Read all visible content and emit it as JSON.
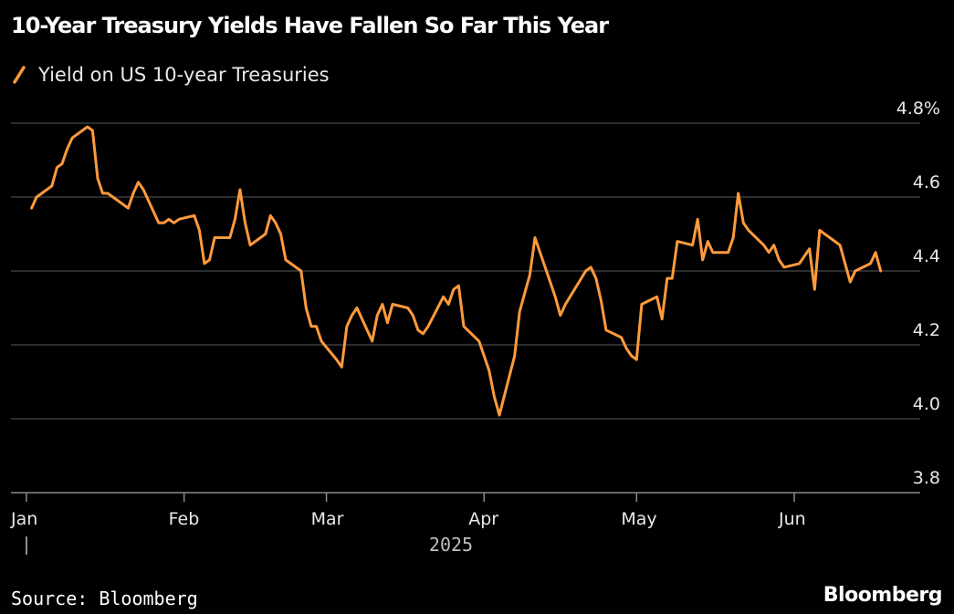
{
  "chart_data": {
    "type": "line",
    "title": "10-Year Treasury Yields Have Fallen So Far This Year",
    "year_label": "2025",
    "y_tick_labels": [
      "3.8",
      "4.0",
      "4.2",
      "4.4",
      "4.6",
      "4.8%"
    ],
    "y_ticks": [
      3.8,
      4.0,
      4.2,
      4.4,
      4.6,
      4.8
    ],
    "ylim": [
      3.8,
      4.8
    ],
    "x_tick_labels": [
      "Jan",
      "Feb",
      "Mar",
      "Apr",
      "May",
      "Jun"
    ],
    "x_ticks": [
      "2025-01-01",
      "2025-02-01",
      "2025-03-01",
      "2025-04-01",
      "2025-05-01",
      "2025-06-01"
    ],
    "xlim": [
      "2025-01-01",
      "2025-06-20"
    ],
    "grid": true,
    "legend_position": "top-left",
    "series": [
      {
        "name": "Yield on US 10-year Treasuries",
        "color": "#FF9A3C",
        "x": [
          "2025-01-02",
          "2025-01-03",
          "2025-01-06",
          "2025-01-07",
          "2025-01-08",
          "2025-01-09",
          "2025-01-10",
          "2025-01-13",
          "2025-01-14",
          "2025-01-15",
          "2025-01-16",
          "2025-01-17",
          "2025-01-20",
          "2025-01-21",
          "2025-01-22",
          "2025-01-23",
          "2025-01-24",
          "2025-01-27",
          "2025-01-28",
          "2025-01-29",
          "2025-01-30",
          "2025-01-31",
          "2025-02-03",
          "2025-02-04",
          "2025-02-05",
          "2025-02-06",
          "2025-02-07",
          "2025-02-10",
          "2025-02-11",
          "2025-02-12",
          "2025-02-13",
          "2025-02-14",
          "2025-02-17",
          "2025-02-18",
          "2025-02-19",
          "2025-02-20",
          "2025-02-21",
          "2025-02-24",
          "2025-02-25",
          "2025-02-26",
          "2025-02-27",
          "2025-02-28",
          "2025-03-03",
          "2025-03-04",
          "2025-03-05",
          "2025-03-06",
          "2025-03-07",
          "2025-03-10",
          "2025-03-11",
          "2025-03-12",
          "2025-03-13",
          "2025-03-14",
          "2025-03-17",
          "2025-03-18",
          "2025-03-19",
          "2025-03-20",
          "2025-03-21",
          "2025-03-24",
          "2025-03-25",
          "2025-03-26",
          "2025-03-27",
          "2025-03-28",
          "2025-03-31",
          "2025-04-01",
          "2025-04-02",
          "2025-04-03",
          "2025-04-04",
          "2025-04-07",
          "2025-04-08",
          "2025-04-09",
          "2025-04-10",
          "2025-04-11",
          "2025-04-14",
          "2025-04-15",
          "2025-04-16",
          "2025-04-17",
          "2025-04-21",
          "2025-04-22",
          "2025-04-23",
          "2025-04-24",
          "2025-04-25",
          "2025-04-28",
          "2025-04-29",
          "2025-04-30",
          "2025-05-01",
          "2025-05-02",
          "2025-05-05",
          "2025-05-06",
          "2025-05-07",
          "2025-05-08",
          "2025-05-09",
          "2025-05-12",
          "2025-05-13",
          "2025-05-14",
          "2025-05-15",
          "2025-05-16",
          "2025-05-19",
          "2025-05-20",
          "2025-05-21",
          "2025-05-22",
          "2025-05-23",
          "2025-05-26",
          "2025-05-27",
          "2025-05-28",
          "2025-05-29",
          "2025-05-30",
          "2025-06-02",
          "2025-06-03",
          "2025-06-04",
          "2025-06-05",
          "2025-06-06",
          "2025-06-09",
          "2025-06-10",
          "2025-06-11",
          "2025-06-12",
          "2025-06-13",
          "2025-06-16",
          "2025-06-17",
          "2025-06-18"
        ],
        "values": [
          4.57,
          4.6,
          4.63,
          4.68,
          4.69,
          4.73,
          4.76,
          4.79,
          4.78,
          4.65,
          4.61,
          4.61,
          4.58,
          4.57,
          4.61,
          4.64,
          4.62,
          4.53,
          4.53,
          4.54,
          4.53,
          4.54,
          4.55,
          4.51,
          4.42,
          4.43,
          4.49,
          4.49,
          4.54,
          4.62,
          4.53,
          4.47,
          4.5,
          4.55,
          4.53,
          4.5,
          4.43,
          4.4,
          4.3,
          4.25,
          4.25,
          4.21,
          4.16,
          4.14,
          4.25,
          4.28,
          4.3,
          4.21,
          4.28,
          4.31,
          4.26,
          4.31,
          4.3,
          4.28,
          4.24,
          4.23,
          4.25,
          4.33,
          4.31,
          4.35,
          4.36,
          4.25,
          4.21,
          4.17,
          4.13,
          4.06,
          4.01,
          4.17,
          4.29,
          4.34,
          4.39,
          4.49,
          4.37,
          4.33,
          4.28,
          4.31,
          4.4,
          4.41,
          4.38,
          4.32,
          4.24,
          4.22,
          4.19,
          4.17,
          4.16,
          4.31,
          4.33,
          4.27,
          4.38,
          4.38,
          4.48,
          4.47,
          4.54,
          4.43,
          4.48,
          4.45,
          4.45,
          4.49,
          4.61,
          4.53,
          4.51,
          4.47,
          4.45,
          4.47,
          4.43,
          4.41,
          4.42,
          4.44,
          4.46,
          4.35,
          4.51,
          4.48,
          4.47,
          4.42,
          4.37,
          4.4,
          4.42,
          4.45,
          4.4
        ]
      }
    ]
  },
  "source": "Source: Bloomberg",
  "brand": "Bloomberg"
}
